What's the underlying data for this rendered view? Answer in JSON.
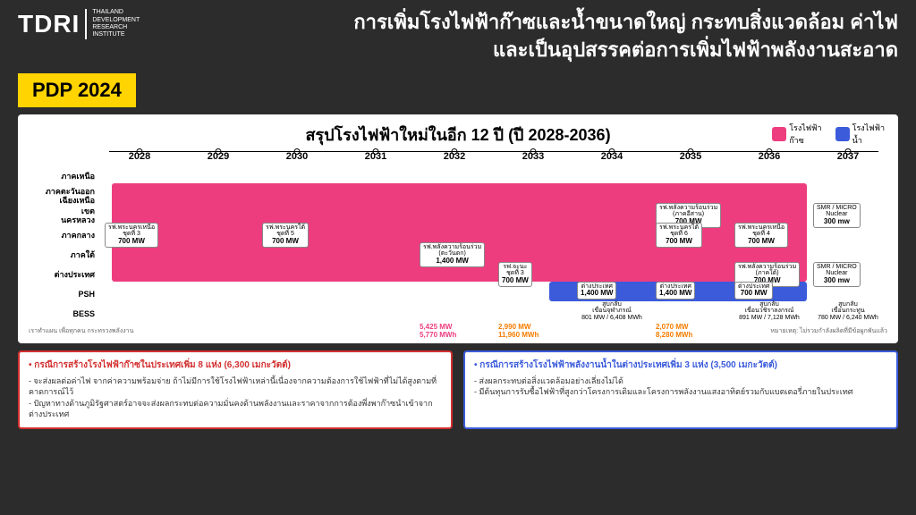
{
  "logo": {
    "main": "TDRI",
    "sub": "THAILAND\nDEVELOPMENT\nRESEARCH\nINSTITUTE"
  },
  "title": "การเพิ่มโรงไฟฟ้าก๊าซและน้ำขนาดใหญ่ กระทบสิ่งแวดล้อม ค่าไฟ\nและเป็นอุปสรรคต่อการเพิ่มไฟฟ้าพลังงานสะอาด",
  "badge": "PDP 2024",
  "chart_title": "สรุปโรงไฟฟ้าใหม่ในอีก 12 ปี (ปี 2028-2036)",
  "legend": {
    "gas": "โรงไฟฟ้า\nก๊าซ",
    "hydro": "โรงไฟฟ้า\nน้ำ",
    "gas_color": "#ed3d7f",
    "hydro_color": "#3b5bdb"
  },
  "years": [
    "2028",
    "2029",
    "2030",
    "2031",
    "2032",
    "2033",
    "2034",
    "2035",
    "2036",
    "2037"
  ],
  "row_labels": [
    "ภาคเหนือ",
    "ภาคตะวันออก\nเฉียงเหนือ",
    "เขต\nนครหลวง",
    "ภาคกลาง",
    "ภาคใต้",
    "ต่างประเทศ",
    "PSH",
    "BESS"
  ],
  "plants": [
    {
      "row": 2,
      "col": 0,
      "l1": "รฟ.พระนครเหนือ",
      "l2": "ชุดที่ 3",
      "mw": "700 MW"
    },
    {
      "row": 2,
      "col": 2,
      "l1": "รฟ.พระนครใต้",
      "l2": "ชุดที่ 5",
      "mw": "700 MW"
    },
    {
      "row": 1,
      "col": 7,
      "l1": "รฟ.พลังความร้อนร่วม",
      "l2": "(ภาคอีสาน)",
      "mw": "700 MW"
    },
    {
      "row": 2,
      "col": 7,
      "l1": "รฟ.พระนครใต้",
      "l2": "ชุดที่ 6",
      "mw": "700 MW"
    },
    {
      "row": 2,
      "col": 8,
      "l1": "รฟ.พระนครเหนือ",
      "l2": "ชุดที่ 4",
      "mw": "700 MW"
    },
    {
      "row": 3,
      "col": 4,
      "l1": "รฟ.พลังความร้อนร่วม",
      "l2": "(ตะวันตก)",
      "mw": "1,400 MW"
    },
    {
      "row": 4,
      "col": 5,
      "l1": "รฟ.จะนะ",
      "l2": "ชุดที่ 3",
      "mw": "700 MW"
    },
    {
      "row": 4,
      "col": 8,
      "l1": "รฟ.พลังความร้อนร่วม",
      "l2": "(ภาคใต้)",
      "mw": "700 MW"
    },
    {
      "row": 1,
      "col": 9,
      "l1": "SMR / MICRO",
      "l2": "Nuclear",
      "mw": "300 mw"
    },
    {
      "row": 4,
      "col": 9,
      "l1": "SMR / MICRO",
      "l2": "Nuclear",
      "mw": "300 mw"
    },
    {
      "row": 5,
      "col": 6,
      "l1": "ต่างประเทศ",
      "l2": "",
      "mw": "1,400 MW"
    },
    {
      "row": 5,
      "col": 7,
      "l1": "ต่างประเทศ",
      "l2": "",
      "mw": "1,400 MW"
    },
    {
      "row": 5,
      "col": 8,
      "l1": "ต่างประเทศ",
      "l2": "",
      "mw": "700 MW"
    }
  ],
  "psh": [
    {
      "col": 6,
      "l1": "สูบกลับ",
      "l2": "เขื่อนจุฬาภรณ์",
      "l3": "801 MW / 6,408 MWh"
    },
    {
      "col": 8,
      "l1": "สูบกลับ",
      "l2": "เขื่อนวชิราลงกรณ์",
      "l3": "891 MW / 7,128 MWh"
    },
    {
      "col": 9,
      "l1": "สูบกลับ",
      "l2": "เขื่อนกระทูน",
      "l3": "780 MW / 6,240 MWh"
    }
  ],
  "bess": [
    {
      "col": 4,
      "t1": "5,425 MW",
      "t2": "5,770 MWh",
      "c": "#ed3d7f"
    },
    {
      "col": 5,
      "t1": "2,990 MW",
      "t2": "11,960 MWh",
      "c": "#f57c00"
    },
    {
      "col": 7,
      "t1": "2,070 MW",
      "t2": "8,280 MWh",
      "c": "#f57c00"
    }
  ],
  "note_left": "เราทำแผน เพื่อทุกคน กระทรวงพลังงาน",
  "note_right": "หมายเหตุ: ไม่รวมกำลังผลิตที่มีข้อผูกพันแล้ว",
  "box_red": {
    "title": "กรณีการสร้างโรงไฟฟ้าก๊าซในประเทศเพิ่ม 8 แห่ง (6,300 เมกะวัตต์)",
    "body": "- จะส่งผลต่อค่าไฟ จากค่าความพร้อมจ่าย ถ้าไม่มีการใช้โรงไฟฟ้าเหล่านี้เนื่องจากความต้องการใช้ไฟฟ้าที่ไม่ได้สูงตามที่คาดการณ์ไว้\n- ปัญหาทางด้านภูมิรัฐศาสตร์อาจจะส่งผลกระทบต่อความมั่นคงด้านพลังงานและราคาจากการต้องพึ่งพาก๊าซนำเข้าจากต่างประเทศ"
  },
  "box_blue": {
    "title": "กรณีการสร้างโรงไฟฟ้าพลังงานน้ำในต่างประเทศเพิ่ม 3 แห่ง (3,500 เมกะวัตต์)",
    "body": "- ส่งผลกระทบต่อสิ่งแวดล้อมอย่างเลี่ยงไม่ได้\n- มีต้นทุนการรับซื้อไฟฟ้าที่สูงกว่าโครงการเดิมและโครงการพลังงานแสงอาทิตย์รวมกับแบตเตอรี่ภายในประเทศ"
  }
}
